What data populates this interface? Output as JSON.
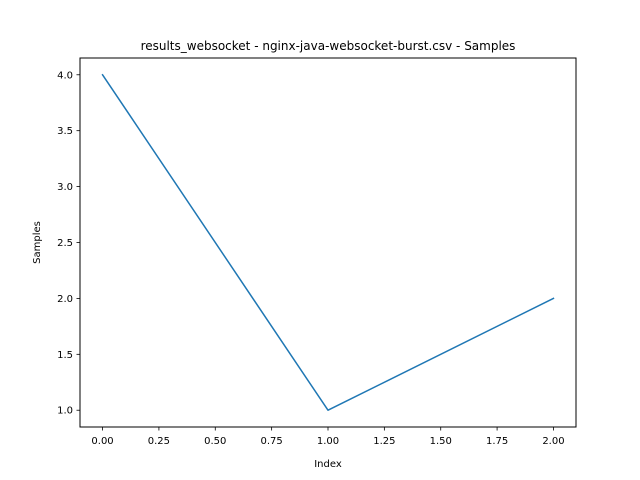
{
  "chart_data": {
    "type": "line",
    "title": "results_websocket - nginx-java-websocket-burst.csv - Samples",
    "xlabel": "Index",
    "ylabel": "Samples",
    "x": [
      0,
      1,
      2
    ],
    "series": [
      {
        "values": [
          4,
          1,
          2
        ],
        "color": "#1f77b4"
      }
    ],
    "xlim": [
      -0.1,
      2.1
    ],
    "ylim": [
      0.85,
      4.15
    ],
    "xticks": [
      0.0,
      0.25,
      0.5,
      0.75,
      1.0,
      1.25,
      1.5,
      1.75,
      2.0
    ],
    "xtick_labels": [
      "0.00",
      "0.25",
      "0.50",
      "0.75",
      "1.00",
      "1.25",
      "1.50",
      "1.75",
      "2.00"
    ],
    "yticks": [
      1.0,
      1.5,
      2.0,
      2.5,
      3.0,
      3.5,
      4.0
    ],
    "ytick_labels": [
      "1.0",
      "1.5",
      "2.0",
      "2.5",
      "3.0",
      "3.5",
      "4.0"
    ],
    "grid": false,
    "legend": "none"
  }
}
